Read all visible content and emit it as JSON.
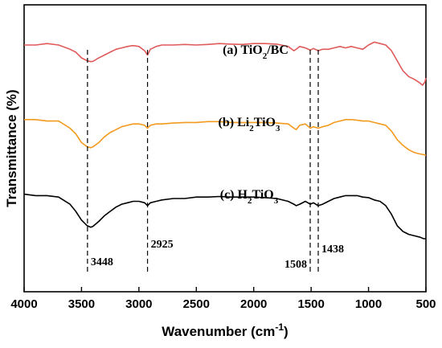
{
  "chart_data": {
    "type": "line",
    "xlabel": "Wavenumber (cm-1)",
    "xlabel_parts": {
      "main": "Wavenumber (cm",
      "sup": "-1",
      "end": ")"
    },
    "ylabel": "Transmittance (%)",
    "xlim": [
      4000,
      500
    ],
    "xticks": [
      4000,
      3500,
      3000,
      2500,
      2000,
      1500,
      1000,
      500
    ],
    "grid": false,
    "series": [
      {
        "name": "(a) TiO2/BC",
        "label_parts": [
          {
            "t": "(a) TiO"
          },
          {
            "t": "2",
            "sub": true
          },
          {
            "t": "/BC"
          }
        ],
        "color": "#e05a5a",
        "x": [
          4000,
          3900,
          3800,
          3700,
          3600,
          3550,
          3500,
          3450,
          3420,
          3400,
          3350,
          3300,
          3250,
          3200,
          3150,
          3100,
          3050,
          3000,
          2950,
          2925,
          2900,
          2850,
          2800,
          2700,
          2600,
          2500,
          2400,
          2300,
          2200,
          2100,
          2000,
          1900,
          1800,
          1700,
          1650,
          1630,
          1600,
          1550,
          1508,
          1480,
          1438,
          1400,
          1350,
          1300,
          1250,
          1200,
          1150,
          1100,
          1050,
          1000,
          950,
          900,
          850,
          800,
          750,
          700,
          650,
          600,
          560,
          530,
          510,
          500
        ],
        "y": [
          86,
          86,
          86.5,
          86,
          84.5,
          83.5,
          81.5,
          80.5,
          80.2,
          80.3,
          81.5,
          82.5,
          83.5,
          84.5,
          85,
          85.5,
          85.8,
          85.5,
          84,
          82.5,
          84.5,
          85.5,
          86,
          86,
          86.2,
          86,
          86.2,
          86.5,
          86.3,
          86.2,
          86.5,
          86.5,
          86.3,
          85.5,
          84,
          84.5,
          85.5,
          85,
          84.2,
          84.8,
          84,
          84.5,
          84.5,
          85,
          85.5,
          85,
          85.5,
          85,
          84.5,
          86,
          87,
          86.5,
          86,
          84,
          80.5,
          77,
          75,
          74,
          73,
          72,
          73,
          74.5
        ]
      },
      {
        "name": "(b) Li2TiO3",
        "label_parts": [
          {
            "t": "(b) Li"
          },
          {
            "t": "2",
            "sub": true
          },
          {
            "t": "TiO"
          },
          {
            "t": "3",
            "sub": true
          }
        ],
        "color": "#f39a1e",
        "x": [
          4000,
          3900,
          3800,
          3700,
          3600,
          3550,
          3500,
          3450,
          3420,
          3400,
          3350,
          3300,
          3250,
          3200,
          3150,
          3100,
          3050,
          3000,
          2950,
          2925,
          2900,
          2850,
          2800,
          2700,
          2600,
          2500,
          2400,
          2300,
          2200,
          2100,
          2000,
          1900,
          1800,
          1700,
          1650,
          1630,
          1600,
          1550,
          1508,
          1480,
          1438,
          1400,
          1350,
          1300,
          1250,
          1200,
          1150,
          1100,
          1050,
          1000,
          950,
          900,
          850,
          800,
          750,
          700,
          650,
          600,
          550,
          520,
          500
        ],
        "y": [
          60,
          60,
          59.5,
          59.5,
          57,
          55,
          52,
          50.5,
          50.2,
          50.5,
          52,
          54,
          55.5,
          56.5,
          57.5,
          58,
          58.5,
          58.5,
          58,
          57,
          58,
          58.5,
          58.5,
          58.8,
          59,
          59,
          59.3,
          59.3,
          59,
          59,
          59,
          59,
          58.8,
          58.5,
          57,
          56.5,
          58,
          58.5,
          57,
          57.5,
          57,
          57.5,
          58,
          59,
          59.5,
          60,
          60,
          59.8,
          59.5,
          59.5,
          59,
          58.5,
          58,
          56,
          53,
          51,
          49.5,
          48.5,
          48,
          47.8,
          47.5
        ]
      },
      {
        "name": "(c) H2TiO3",
        "label_parts": [
          {
            "t": "(c) H"
          },
          {
            "t": "2",
            "sub": true
          },
          {
            "t": "TiO"
          },
          {
            "t": "3",
            "sub": true
          }
        ],
        "color": "#000000",
        "x": [
          4000,
          3900,
          3800,
          3700,
          3600,
          3550,
          3500,
          3450,
          3420,
          3400,
          3350,
          3300,
          3250,
          3200,
          3150,
          3100,
          3050,
          3000,
          2950,
          2925,
          2900,
          2850,
          2800,
          2700,
          2600,
          2500,
          2400,
          2300,
          2200,
          2100,
          2000,
          1900,
          1800,
          1700,
          1650,
          1630,
          1600,
          1550,
          1508,
          1480,
          1438,
          1400,
          1350,
          1300,
          1250,
          1200,
          1150,
          1100,
          1050,
          1000,
          950,
          900,
          850,
          800,
          750,
          700,
          650,
          600,
          550,
          520,
          500
        ],
        "y": [
          34,
          33.5,
          33.5,
          33,
          30.5,
          28,
          25,
          23,
          22.5,
          22.8,
          24.5,
          26.5,
          28,
          29.5,
          30.5,
          31,
          31.5,
          31.5,
          31,
          30,
          31,
          31.5,
          32,
          32.5,
          32.5,
          33,
          33,
          33.2,
          33,
          33,
          33,
          32.8,
          32.5,
          31.5,
          30.5,
          30,
          30.5,
          31.5,
          30.5,
          31,
          30,
          30.5,
          31.5,
          32.5,
          33,
          33.5,
          33.5,
          33.5,
          33,
          32.8,
          32,
          31.5,
          30,
          27,
          23,
          21,
          20,
          19.5,
          19,
          18.5,
          18.5
        ]
      }
    ],
    "ylim": [
      0,
      100
    ],
    "peaks": [
      {
        "x": 3448,
        "label": "3448"
      },
      {
        "x": 2925,
        "label": "2925"
      },
      {
        "x": 1508,
        "label": "1508"
      },
      {
        "x": 1438,
        "label": "1438"
      }
    ]
  }
}
